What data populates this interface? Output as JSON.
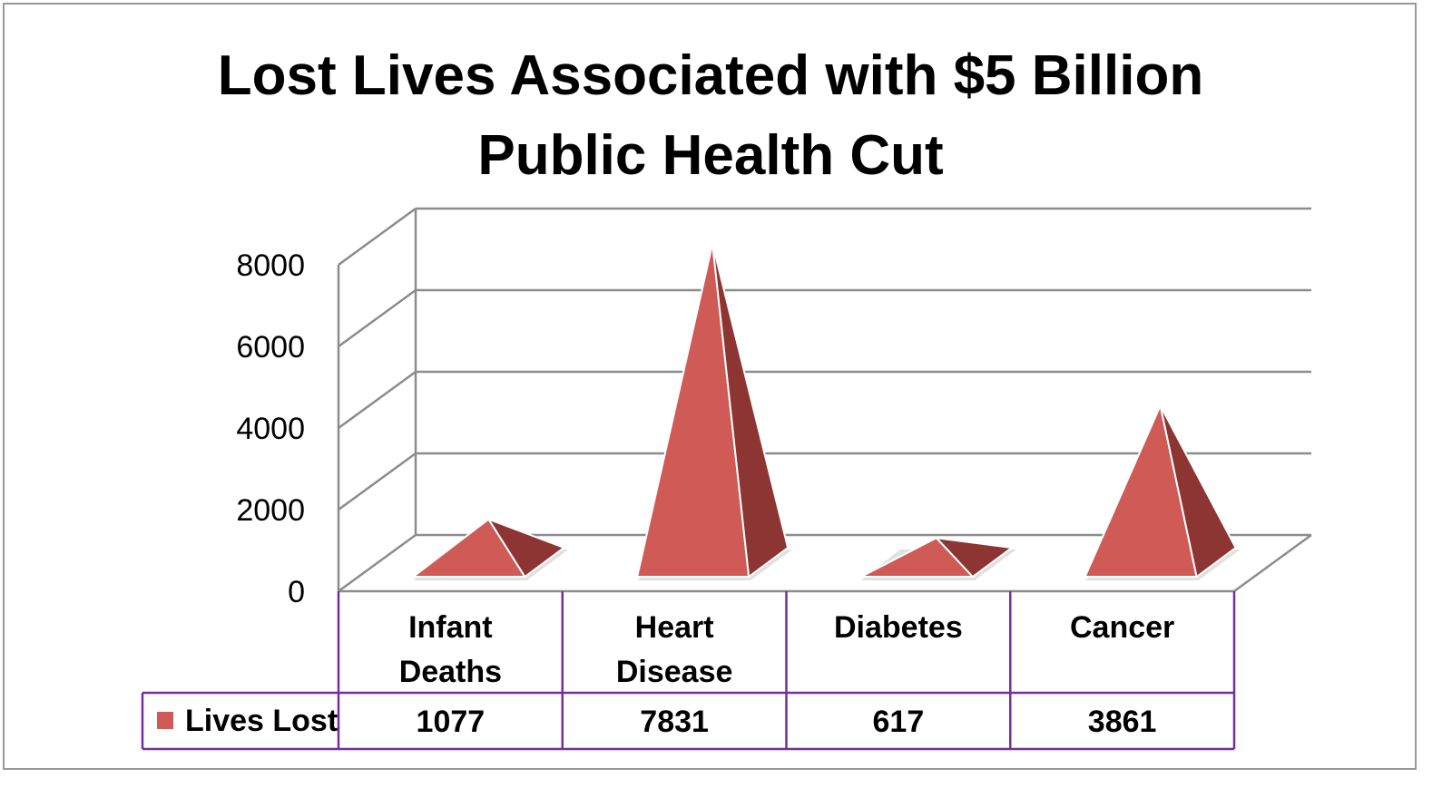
{
  "chart_data": {
    "type": "bar",
    "subtype": "3d-pyramid",
    "title_lines": [
      "Lost Lives Associated with $5 Billion",
      "Public Health Cut"
    ],
    "categories": [
      [
        "Infant",
        "Deaths"
      ],
      [
        "Heart",
        "Disease"
      ],
      [
        "Diabetes"
      ],
      [
        "Cancer"
      ]
    ],
    "series": [
      {
        "name": "Lives Lost",
        "values": [
          1077,
          7831,
          617,
          3861
        ]
      }
    ],
    "ylim": [
      0,
      8000
    ],
    "yticks": [
      "0",
      "2000",
      "4000",
      "6000",
      "8000"
    ],
    "grid": true,
    "legend": "data-table-bottom",
    "colors": {
      "front": "#d05a55",
      "side": "#8c3533",
      "grid": "#8c8c8c",
      "table_border": "#7030a0",
      "frame": "#999999"
    }
  }
}
